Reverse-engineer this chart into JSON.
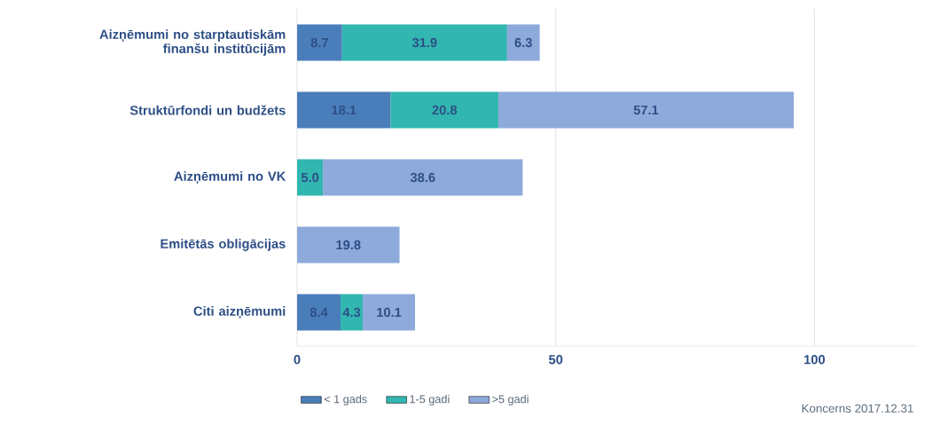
{
  "chart_data": {
    "type": "bar",
    "orientation": "horizontal",
    "stacked": true,
    "categories": [
      "Aizņēmumi no starptautiskām finanšu institūcijām",
      "Struktūrfondi un budžets",
      "Aizņēmumi no VK",
      "Emitētās obligācijas",
      "Citi aizņēmumi"
    ],
    "series": [
      {
        "name": "< 1 gads",
        "color": "#4a7ebb",
        "values": [
          8.7,
          18.1,
          null,
          null,
          8.4
        ],
        "value_labels": [
          "8.7",
          "18.1",
          null,
          null,
          "8.4"
        ]
      },
      {
        "name": "1-5 gadi",
        "color": "#31b6b0",
        "values": [
          31.9,
          20.8,
          5.0,
          null,
          4.3
        ],
        "value_labels": [
          "31.9",
          "20.8",
          "5.0",
          null,
          "4.3"
        ]
      },
      {
        "name": ">5 gadi",
        "color": "#8eaadb",
        "values": [
          6.3,
          57.1,
          38.6,
          19.8,
          10.1
        ],
        "value_labels": [
          "6.3",
          "57.1",
          "38.6",
          "19.8",
          "10.1"
        ]
      }
    ],
    "xlim": [
      0,
      120
    ],
    "xticks": [
      0,
      50,
      100
    ],
    "grid": "x",
    "legend": "bottom",
    "annotations": [
      "Koncerns 2017.12.31"
    ]
  }
}
